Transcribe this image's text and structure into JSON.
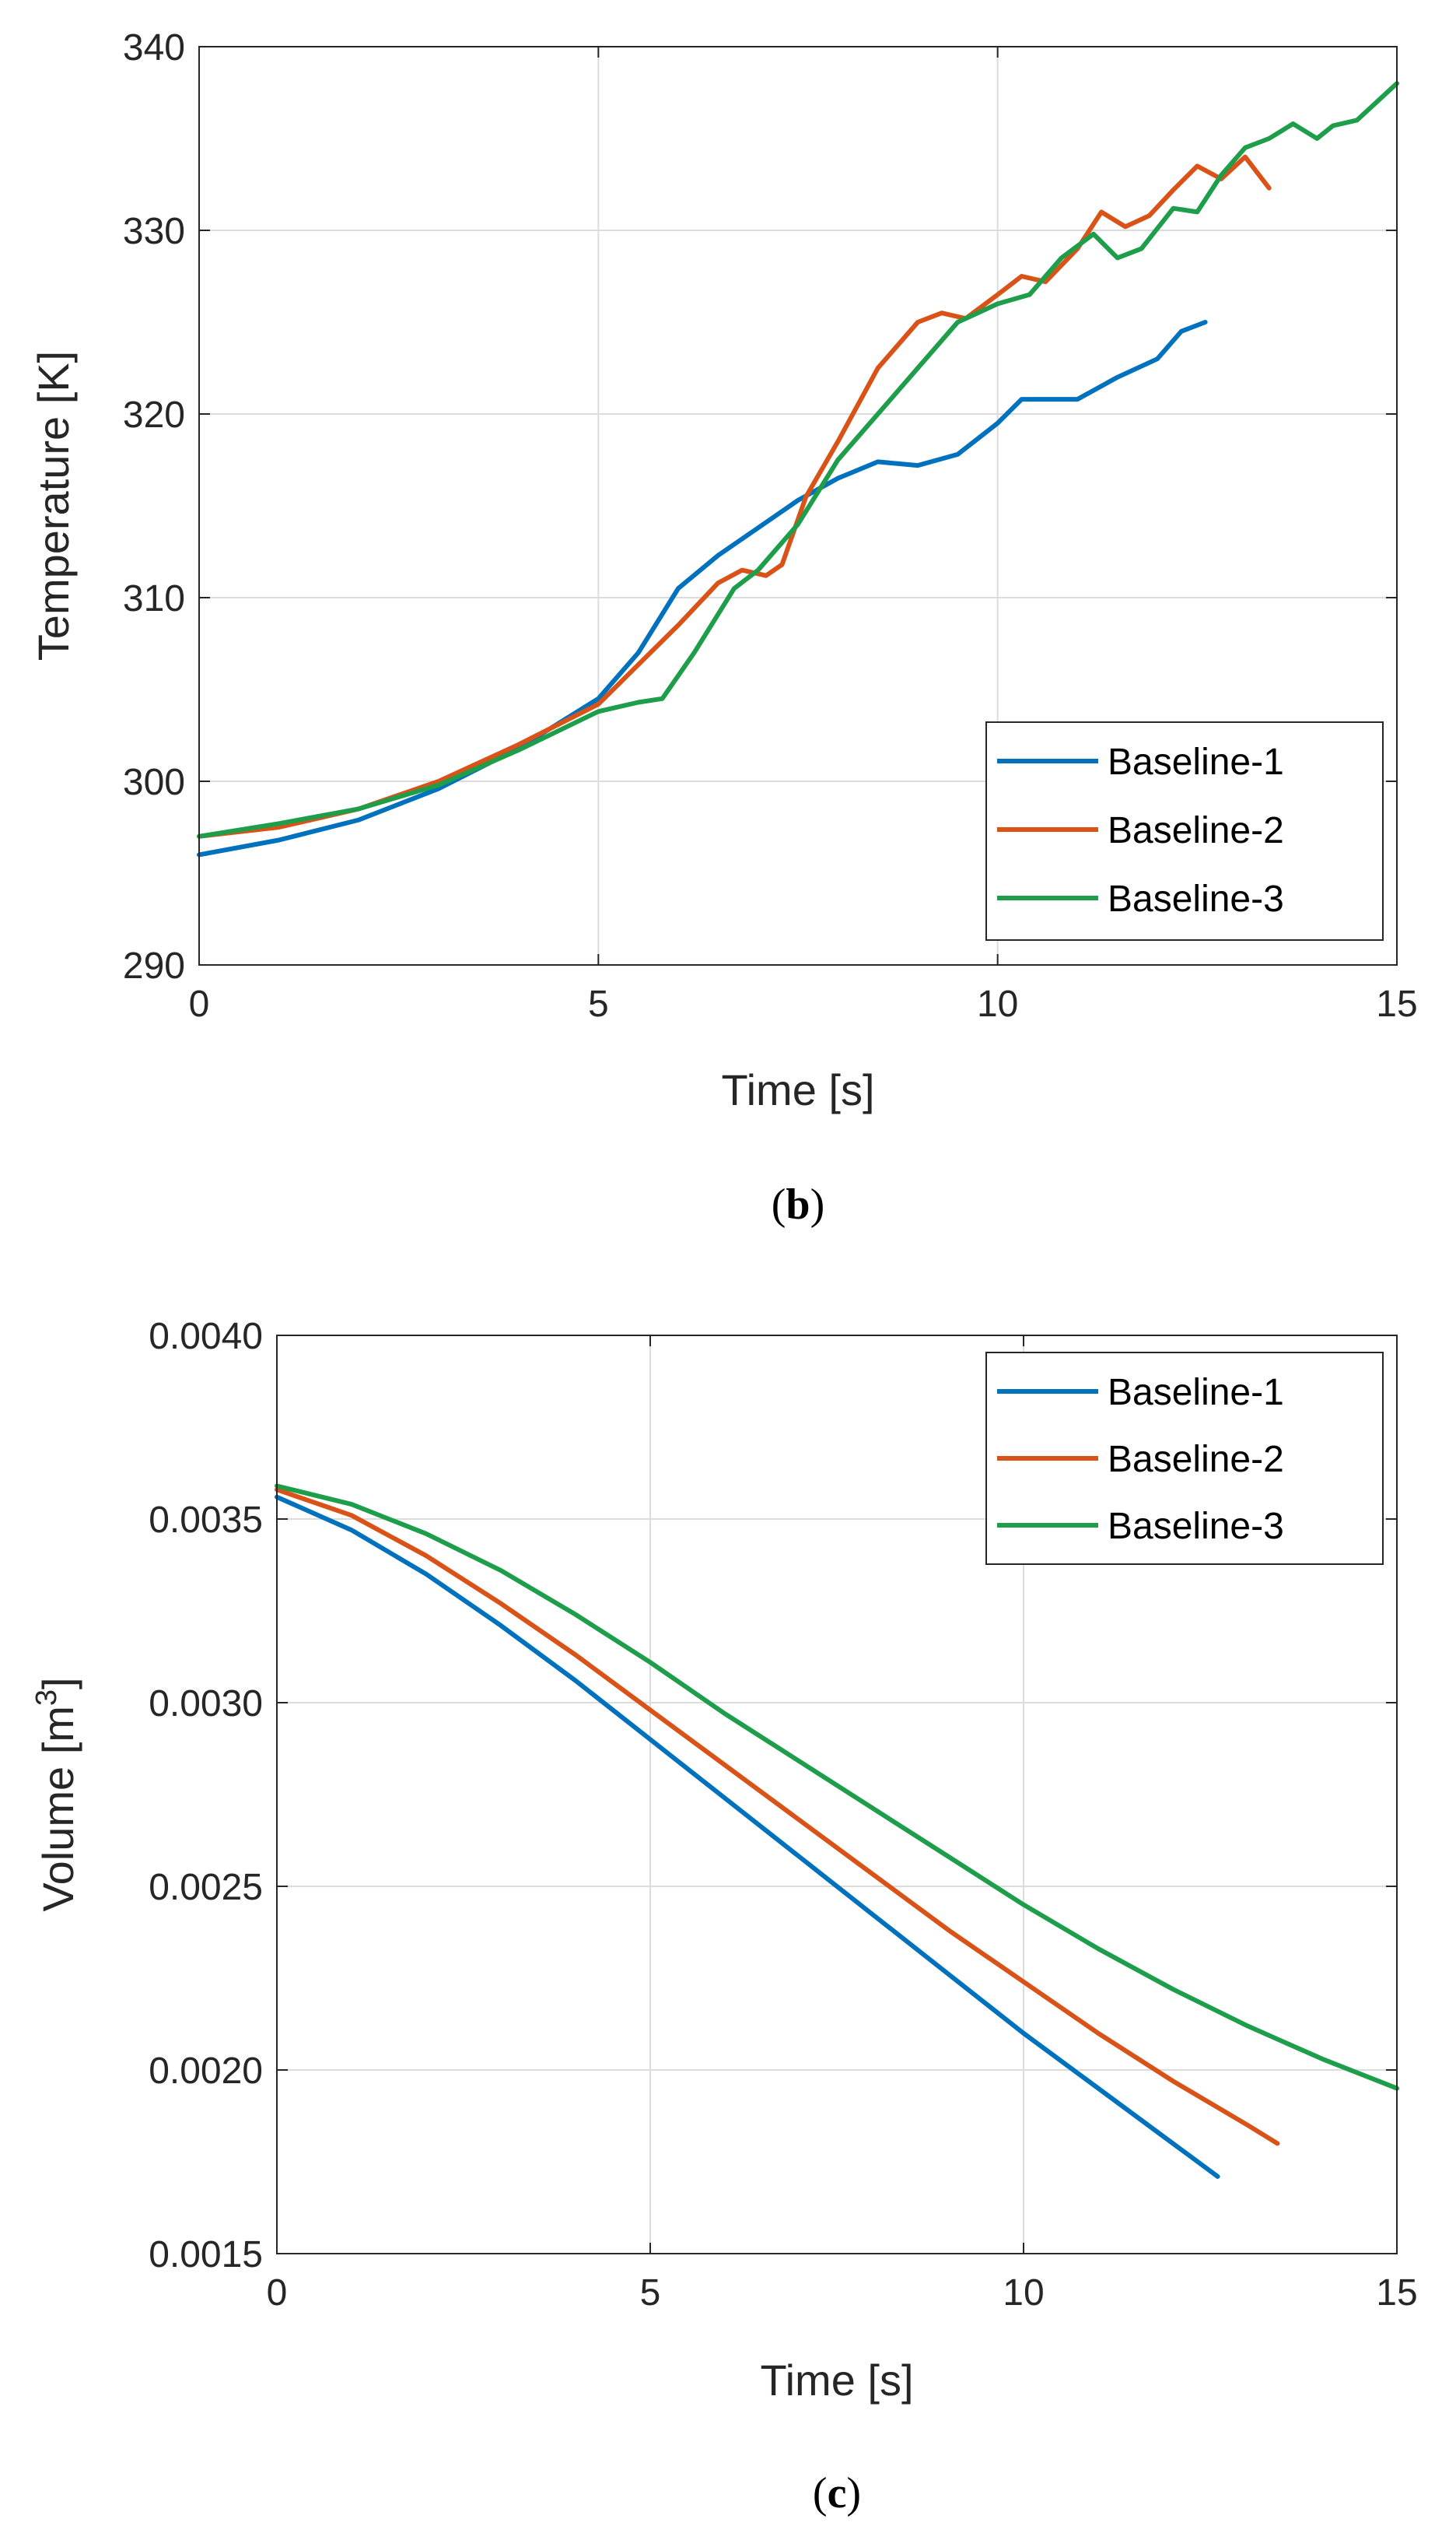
{
  "colors": {
    "series1": "#0072BD",
    "series2": "#D95319",
    "series3": "#1E9E4A",
    "grid": "#DCDCDC",
    "axis": "#262626"
  },
  "chart_data": [
    {
      "type": "line",
      "caption_open": "(",
      "caption_letter": "b",
      "caption_close": ")",
      "xlabel": "Time [s]",
      "ylabel": "Temperature [K]",
      "xlim": [
        0,
        15
      ],
      "ylim": [
        290,
        340
      ],
      "xticks": [
        0,
        5,
        10,
        15
      ],
      "xtick_labels": [
        "0",
        "5",
        "10",
        "15"
      ],
      "yticks": [
        290,
        300,
        310,
        320,
        330,
        340
      ],
      "ytick_labels": [
        "290",
        "300",
        "310",
        "320",
        "330",
        "340"
      ],
      "grid": true,
      "legend_location": "bottom-right",
      "series": [
        {
          "name": "Baseline-1",
          "x": [
            0,
            1,
            2,
            3,
            4,
            5,
            5.5,
            6,
            6.5,
            7,
            7.5,
            8,
            8.5,
            9,
            9.5,
            10,
            10.3,
            10.7,
            11,
            11.5,
            12,
            12.3,
            12.6
          ],
          "y": [
            296,
            296.8,
            297.9,
            299.6,
            301.8,
            304.5,
            307,
            310.5,
            312.3,
            313.8,
            315.3,
            316.5,
            317.4,
            317.2,
            317.8,
            319.5,
            320.8,
            320.8,
            320.8,
            322,
            323,
            324.5,
            325
          ]
        },
        {
          "name": "Baseline-2",
          "x": [
            0,
            1,
            2,
            3,
            4,
            5,
            6,
            6.5,
            6.8,
            7.1,
            7.3,
            7.6,
            8,
            8.5,
            9,
            9.3,
            9.6,
            10,
            10.3,
            10.6,
            11,
            11.3,
            11.6,
            11.9,
            12.2,
            12.5,
            12.8,
            13.1,
            13.4
          ],
          "y": [
            297,
            297.5,
            298.5,
            300,
            302,
            304.2,
            308.5,
            310.8,
            311.5,
            311.2,
            311.8,
            315.5,
            318.5,
            322.5,
            325,
            325.5,
            325.2,
            326.5,
            327.5,
            327.2,
            329,
            331,
            330.2,
            330.8,
            332.2,
            333.5,
            332.8,
            334,
            332.3
          ]
        },
        {
          "name": "Baseline-3",
          "x": [
            0,
            1,
            2,
            3,
            4,
            5,
            5.5,
            5.8,
            6.2,
            6.7,
            7,
            7.5,
            8,
            8.5,
            9,
            9.5,
            10,
            10.4,
            10.8,
            11.2,
            11.5,
            11.8,
            12.2,
            12.5,
            12.8,
            13.1,
            13.4,
            13.7,
            14,
            14.2,
            14.5,
            15
          ],
          "y": [
            297,
            297.7,
            298.5,
            299.8,
            301.7,
            303.8,
            304.3,
            304.5,
            307,
            310.5,
            311.5,
            314,
            317.5,
            320,
            322.5,
            325,
            326,
            326.5,
            328.5,
            329.8,
            328.5,
            329,
            331.2,
            331,
            333,
            334.5,
            335,
            335.8,
            335,
            335.7,
            336,
            338
          ]
        }
      ]
    },
    {
      "type": "line",
      "caption_open": "(",
      "caption_letter": "c",
      "caption_close": ")",
      "xlabel": "Time [s]",
      "ylabel_main": "Volume [m",
      "ylabel_sup": "3",
      "ylabel_end": "]",
      "xlim": [
        0,
        15
      ],
      "ylim": [
        0.0015,
        0.004
      ],
      "xticks": [
        0,
        5,
        10,
        15
      ],
      "xtick_labels": [
        "0",
        "5",
        "10",
        "15"
      ],
      "yticks": [
        0.0015,
        0.002,
        0.0025,
        0.003,
        0.0035,
        0.004
      ],
      "ytick_labels": [
        "0.0015",
        "0.0020",
        "0.0025",
        "0.0030",
        "0.0035",
        "0.0040"
      ],
      "grid": true,
      "legend_location": "top-right",
      "series": [
        {
          "name": "Baseline-1",
          "x": [
            0,
            1,
            2,
            3,
            4,
            5,
            6,
            7,
            8,
            9,
            10,
            11,
            12,
            12.6
          ],
          "y": [
            0.00356,
            0.00347,
            0.00335,
            0.00321,
            0.00306,
            0.0029,
            0.00274,
            0.00258,
            0.00242,
            0.00226,
            0.0021,
            0.00195,
            0.0018,
            0.00171
          ]
        },
        {
          "name": "Baseline-2",
          "x": [
            0,
            1,
            2,
            3,
            4,
            5,
            6,
            7,
            8,
            9,
            10,
            11,
            12,
            13,
            13.4
          ],
          "y": [
            0.00358,
            0.00351,
            0.0034,
            0.00327,
            0.00313,
            0.00298,
            0.00283,
            0.00268,
            0.00253,
            0.00238,
            0.00224,
            0.0021,
            0.00197,
            0.00185,
            0.0018
          ]
        },
        {
          "name": "Baseline-3",
          "x": [
            0,
            1,
            2,
            3,
            4,
            5,
            6,
            7,
            8,
            9,
            10,
            11,
            12,
            13,
            14,
            15
          ],
          "y": [
            0.00359,
            0.00354,
            0.00346,
            0.00336,
            0.00324,
            0.00311,
            0.00297,
            0.00284,
            0.00271,
            0.00258,
            0.00245,
            0.00233,
            0.00222,
            0.00212,
            0.00203,
            0.00195
          ]
        }
      ]
    }
  ]
}
